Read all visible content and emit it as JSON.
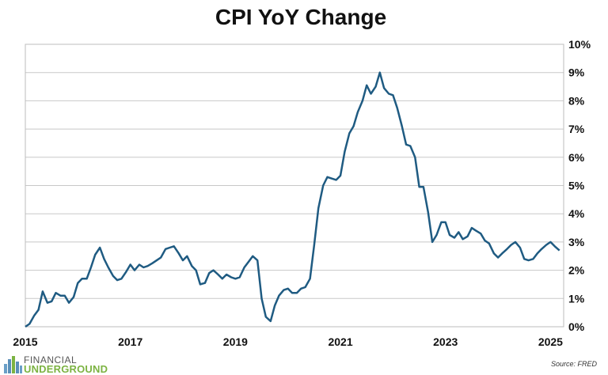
{
  "brand": {
    "line1": "FINANCIAL",
    "line2": "UNDERGROUND",
    "icon": "city-skyline-icon"
  },
  "source": "Source: FRED",
  "colors": {
    "line": "#1f5b82",
    "grid": "#c8c8c8",
    "brand_green": "#7cb342"
  },
  "chart_data": {
    "type": "line",
    "title": "CPI YoY Change",
    "xlabel": "",
    "ylabel": "",
    "y_axis_side": "right",
    "grid": "horizontal",
    "ylim": [
      0,
      10
    ],
    "xlim": [
      2015.0,
      2025.25
    ],
    "yticks": [
      0,
      1,
      2,
      3,
      4,
      5,
      6,
      7,
      8,
      9,
      10
    ],
    "ytick_labels": [
      "0%",
      "1%",
      "2%",
      "3%",
      "4%",
      "5%",
      "6%",
      "7%",
      "8%",
      "9%",
      "10%"
    ],
    "xticks": [
      2015,
      2017,
      2019,
      2021,
      2023,
      2025
    ],
    "xtick_labels": [
      "2015",
      "2017",
      "2019",
      "2021",
      "2023",
      "2025"
    ],
    "series": [
      {
        "name": "",
        "x": [
          2015.0,
          2015.08,
          2015.17,
          2015.25,
          2015.33,
          2015.42,
          2015.5,
          2015.58,
          2015.67,
          2015.75,
          2015.83,
          2015.92,
          2016.0,
          2016.08,
          2016.17,
          2016.25,
          2016.33,
          2016.42,
          2016.5,
          2016.58,
          2016.67,
          2016.75,
          2016.83,
          2016.92,
          2017.0,
          2017.08,
          2017.17,
          2017.25,
          2017.33,
          2017.42,
          2017.5,
          2017.58,
          2017.67,
          2017.75,
          2017.83,
          2017.92,
          2018.0,
          2018.08,
          2018.17,
          2018.25,
          2018.33,
          2018.42,
          2018.5,
          2018.58,
          2018.67,
          2018.75,
          2018.83,
          2018.92,
          2019.0,
          2019.08,
          2019.17,
          2019.25,
          2019.33,
          2019.42,
          2019.5,
          2019.58,
          2019.67,
          2019.75,
          2019.83,
          2019.92,
          2020.0,
          2020.08,
          2020.17,
          2020.25,
          2020.33,
          2020.42,
          2020.5,
          2020.58,
          2020.67,
          2020.75,
          2020.83,
          2020.92,
          2021.0,
          2021.08,
          2021.17,
          2021.25,
          2021.33,
          2021.42,
          2021.5,
          2021.58,
          2021.67,
          2021.75,
          2021.83,
          2021.92,
          2022.0,
          2022.08,
          2022.17,
          2022.25,
          2022.33,
          2022.42,
          2022.5,
          2022.58,
          2022.67,
          2022.75,
          2022.83,
          2022.92,
          2023.0,
          2023.08,
          2023.17,
          2023.25,
          2023.33,
          2023.42,
          2023.5,
          2023.58,
          2023.67,
          2023.75,
          2023.83,
          2023.92,
          2024.0,
          2024.08,
          2024.17,
          2024.25,
          2024.33,
          2024.42,
          2024.5,
          2024.58,
          2024.67,
          2024.75,
          2024.83,
          2024.92,
          2025.0,
          2025.08,
          2025.17
        ],
        "values": [
          0.0,
          0.1,
          0.4,
          0.6,
          1.25,
          0.85,
          0.9,
          1.2,
          1.1,
          1.1,
          0.85,
          1.05,
          1.55,
          1.7,
          1.7,
          2.1,
          2.55,
          2.8,
          2.4,
          2.1,
          1.8,
          1.65,
          1.7,
          1.95,
          2.2,
          2.0,
          2.2,
          2.1,
          2.15,
          2.25,
          2.35,
          2.45,
          2.75,
          2.8,
          2.85,
          2.6,
          2.35,
          2.5,
          2.15,
          2.0,
          1.5,
          1.55,
          1.9,
          2.0,
          1.85,
          1.7,
          1.85,
          1.75,
          1.7,
          1.75,
          2.1,
          2.3,
          2.5,
          2.35,
          1.0,
          0.35,
          0.2,
          0.75,
          1.1,
          1.3,
          1.35,
          1.2,
          1.2,
          1.35,
          1.4,
          1.7,
          2.9,
          4.2,
          5.0,
          5.3,
          5.25,
          5.2,
          5.35,
          6.2,
          6.85,
          7.1,
          7.6,
          8.0,
          8.55,
          8.25,
          8.5,
          9.0,
          8.45,
          8.25,
          8.2,
          7.75,
          7.1,
          6.45,
          6.4,
          6.0,
          4.95,
          4.95,
          4.05,
          3.0,
          3.25,
          3.7,
          3.7,
          3.25,
          3.15,
          3.35,
          3.1,
          3.2,
          3.5,
          3.4,
          3.3,
          3.05,
          2.95,
          2.6,
          2.45,
          2.6,
          2.75,
          2.9,
          3.0,
          2.8,
          2.4,
          2.35,
          2.4,
          2.6,
          2.75,
          2.9,
          3.0,
          2.85,
          2.7
        ]
      }
    ]
  }
}
